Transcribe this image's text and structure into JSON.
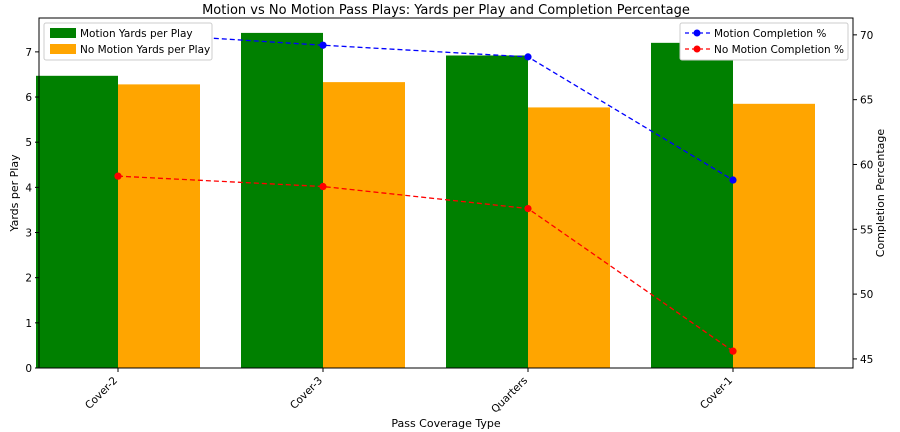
{
  "chart_data": {
    "type": "bar+line",
    "title": "Motion vs No Motion Pass Plays: Yards per Play and Completion Percentage",
    "xlabel": "Pass Coverage Type",
    "ylabel": "Yards per Play",
    "y2label": "Completion Percentage",
    "categories": [
      "Cover-2",
      "Cover-3",
      "Quarters",
      "Cover-1"
    ],
    "ylim": [
      0,
      7.75
    ],
    "y2lim": [
      44.3,
      71.3
    ],
    "yticks": [
      0,
      1,
      2,
      3,
      4,
      5,
      6,
      7
    ],
    "y2ticks": [
      45,
      50,
      55,
      60,
      65,
      70
    ],
    "bars": [
      {
        "name": "Motion Yards per Play",
        "color": "#008000",
        "values": [
          6.47,
          7.42,
          6.92,
          7.2
        ]
      },
      {
        "name": "No Motion Yards per Play",
        "color": "#FFA500",
        "values": [
          6.28,
          6.33,
          5.77,
          5.85
        ]
      }
    ],
    "lines": [
      {
        "name": "Motion Completion %",
        "color": "#0000FF",
        "values": [
          70.2,
          69.2,
          68.3,
          58.8
        ]
      },
      {
        "name": "No Motion Completion %",
        "color": "#FF0000",
        "values": [
          59.1,
          58.3,
          56.6,
          45.6
        ]
      }
    ],
    "grid": false,
    "legend_bars": "top-left",
    "legend_lines": "top-right"
  }
}
